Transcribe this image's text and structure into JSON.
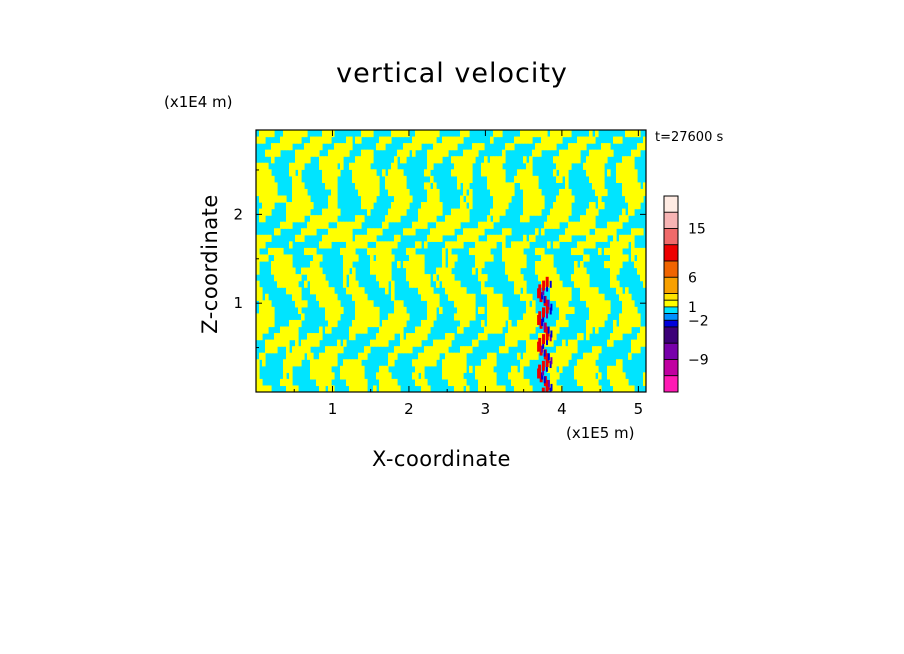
{
  "chart_data": {
    "type": "heatmap",
    "title": "vertical velocity",
    "xlabel": "X-coordinate",
    "ylabel": "Z-coordinate",
    "x_unit": "(x1E5 m)",
    "y_unit": "(x1E4 m)",
    "xlim": [
      0,
      5.1
    ],
    "ylim": [
      0,
      2.95
    ],
    "x_ticks": [
      1,
      2,
      3,
      4,
      5
    ],
    "y_ticks": [
      1,
      2
    ],
    "time_label": "t=27600 s",
    "colorbar": {
      "labels": [
        "15",
        "6",
        "1",
        "−2",
        "−9"
      ],
      "label_values": [
        15,
        6,
        1,
        -2,
        -9
      ],
      "levels": [
        {
          "from": 18,
          "color": "#ffebe3"
        },
        {
          "from": 15,
          "color": "#f7b4b4"
        },
        {
          "from": 12,
          "color": "#f06a6a"
        },
        {
          "from": 9,
          "color": "#ee0000"
        },
        {
          "from": 6,
          "color": "#f06400"
        },
        {
          "from": 3,
          "color": "#f8a000"
        },
        {
          "from": 2,
          "color": "#ffe400"
        },
        {
          "from": 1,
          "color": "#ffff00"
        },
        {
          "from": 0,
          "color": "#00e4ff"
        },
        {
          "from": -1,
          "color": "#0090ff"
        },
        {
          "from": -2,
          "color": "#0000dd"
        },
        {
          "from": -3,
          "color": "#3c0078"
        },
        {
          "from": -6,
          "color": "#7800aa"
        },
        {
          "from": -9,
          "color": "#c000a0"
        },
        {
          "from": -12,
          "color": "#ff1ab4"
        }
      ]
    },
    "field_colors": {
      "positive": "#ffff00",
      "negative": "#00e4ff",
      "strong_up": "#ee0000",
      "strong_down": "#0000dd",
      "strong_down_2": "#7800aa"
    },
    "strong_feature_x": [
      3.65,
      3.9
    ]
  }
}
